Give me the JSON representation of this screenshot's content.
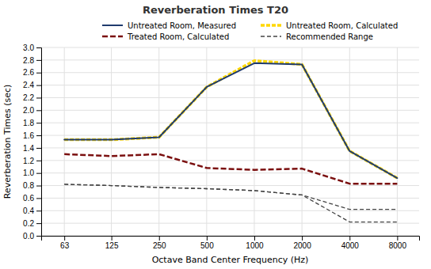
{
  "chart_data": {
    "type": "line",
    "title": "Reverberation Times T20",
    "xlabel": "Octave Band Center Frequency (Hz)",
    "ylabel": "Reverberation Times (sec)",
    "log": "x",
    "grid": true,
    "legend": "top",
    "x": [
      63,
      125,
      250,
      500,
      1000,
      2000,
      4000,
      8000
    ],
    "xlim": [
      45,
      11000
    ],
    "xticks": [
      63,
      125,
      250,
      500,
      1000,
      2000,
      4000,
      8000
    ],
    "ylim": [
      0.0,
      3.0
    ],
    "yticks": [
      {
        "value": 0.0,
        "label": "0.0"
      },
      0.2,
      0.4,
      0.6,
      0.8,
      {
        "value": 1.0,
        "label": "1.0"
      },
      1.2,
      1.4,
      1.6,
      1.8,
      {
        "value": 2.0,
        "label": "2.0"
      },
      2.2,
      2.4,
      2.6,
      2.8,
      {
        "value": 3.0,
        "label": "3.0"
      }
    ],
    "series": [
      {
        "name": "Untreated Room, Measured",
        "color": "#1F3B6E",
        "line_style": "solid",
        "values": [
          1.53,
          1.53,
          1.57,
          2.37,
          2.75,
          2.73,
          1.35,
          0.92
        ]
      },
      {
        "name": "Untreated Room, Calculated",
        "color": "#FFD700",
        "line_style": "dashed",
        "values": [
          1.53,
          1.53,
          1.57,
          2.37,
          2.79,
          2.73,
          1.35,
          0.92
        ]
      },
      {
        "name": "Treated Room, Calculated",
        "color": "#7B1010",
        "line_style": "dashed",
        "values": [
          1.3,
          1.27,
          1.3,
          1.08,
          1.05,
          1.07,
          0.83,
          0.83
        ]
      },
      {
        "name": "Recommended Range",
        "color": "#444444",
        "line_style": "dashed",
        "values": [
          0.82,
          0.8,
          0.77,
          0.75,
          0.72,
          0.65,
          0.42,
          0.42
        ],
        "lower": [
          0.82,
          0.8,
          0.77,
          0.75,
          0.72,
          0.65,
          0.22,
          0.22
        ]
      }
    ]
  }
}
